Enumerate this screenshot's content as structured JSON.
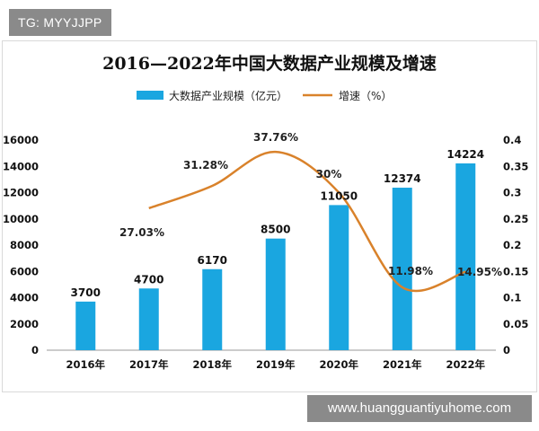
{
  "watermark_tag": "TG: MYYJJPP",
  "footer_url": "www.huangguantiyuhome.com",
  "chart_data": {
    "type": "bar",
    "title": "2016—2022年中国大数据产业规模及增速",
    "categories": [
      "2016年",
      "2017年",
      "2018年",
      "2019年",
      "2020年",
      "2021年",
      "2022年"
    ],
    "series": [
      {
        "name": "大数据产业规模（亿元）",
        "type": "bar",
        "axis": "left",
        "color": "#1aa6e0",
        "values": [
          3700,
          4700,
          6170,
          8500,
          11050,
          12374,
          14224
        ],
        "labels": [
          "3700",
          "4700",
          "6170",
          "8500",
          "11050",
          "12374",
          "14224"
        ]
      },
      {
        "name": "增速（%）",
        "type": "line",
        "axis": "right",
        "color": "#d9822b",
        "values": [
          null,
          0.2703,
          0.3128,
          0.3776,
          0.3,
          0.1198,
          0.1495
        ],
        "labels": [
          "",
          "27.03%",
          "31.28%",
          "37.76%",
          "30%",
          "11.98%",
          "14.95%"
        ]
      }
    ],
    "y_left": {
      "min": 0,
      "max": 16000,
      "ticks": [
        "0",
        "2000",
        "4000",
        "6000",
        "8000",
        "10000",
        "12000",
        "14000",
        "16000"
      ]
    },
    "y_right": {
      "min": 0,
      "max": 0.4,
      "ticks": [
        "0",
        "0.05",
        "0.1",
        "0.15",
        "0.2",
        "0.25",
        "0.3",
        "0.35",
        "0.4"
      ]
    },
    "legend": "top",
    "grid": false
  }
}
